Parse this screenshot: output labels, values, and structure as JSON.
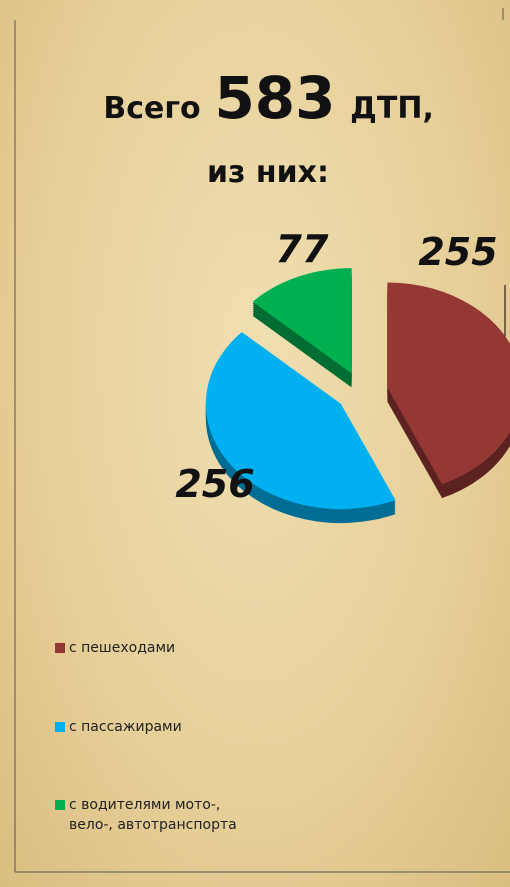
{
  "chart_data": {
    "type": "pie",
    "title_parts": [
      "Всего",
      "583",
      "ДТП,",
      "из них:"
    ],
    "categories": [
      "с пешеходами",
      "с пассажирами",
      "с водителями мото-,\nвело-, автотранспорта"
    ],
    "values": [
      255,
      256,
      77
    ],
    "colors": [
      "#953735",
      "#00b0f0",
      "#00b050"
    ],
    "legend": "bottom-left"
  }
}
